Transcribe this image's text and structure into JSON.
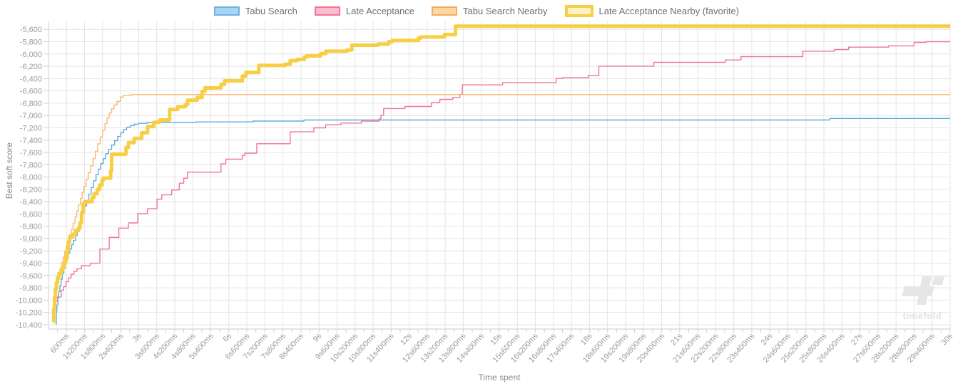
{
  "watermark": {
    "brand": "timefold"
  },
  "legend": {
    "items": [
      {
        "label": "Tabu Search",
        "fill": "#a9d5f3",
        "border": "#6cb3e3",
        "border_width": 2
      },
      {
        "label": "Late Acceptance",
        "fill": "#fbbccd",
        "border": "#f0749c",
        "border_width": 2
      },
      {
        "label": "Tabu Search Nearby",
        "fill": "#fcd8a6",
        "border": "#f7ab5e",
        "border_width": 2
      },
      {
        "label": "Late Acceptance Nearby (favorite)",
        "fill": "#fdf2c6",
        "border": "#f7cf45",
        "border_width": 4
      }
    ]
  },
  "chart_data": {
    "type": "line",
    "title": "",
    "xlabel": "Time spent",
    "ylabel": "Best soft score",
    "step": "after",
    "grid": true,
    "legend_position": "top-center",
    "xlim_seconds": [
      0,
      30
    ],
    "ylim": [
      -10470,
      -5470
    ],
    "x_label_interval_s": 0.6,
    "x_minor_tick_interval_s": 0.3,
    "x_tick_labels": [
      "600ms",
      "1s200ms",
      "1s800ms",
      "2s400ms",
      "3s",
      "3s600ms",
      "4s200ms",
      "4s800ms",
      "5s400ms",
      "6s",
      "6s600ms",
      "7s200ms",
      "7s800ms",
      "8s400ms",
      "9s",
      "9s600ms",
      "10s200ms",
      "10s800ms",
      "11s400ms",
      "12s",
      "12s600ms",
      "13s200ms",
      "13s800ms",
      "14s400ms",
      "15s",
      "15s600ms",
      "16s200ms",
      "16s800ms",
      "17s400ms",
      "18s",
      "18s600ms",
      "19s200ms",
      "19s800ms",
      "20s400ms",
      "21s",
      "21s600ms",
      "22s200ms",
      "22s800ms",
      "23s400ms",
      "24s",
      "24s600ms",
      "25s200ms",
      "25s800ms",
      "26s400ms",
      "27s",
      "27s600ms",
      "28s200ms",
      "28s800ms",
      "29s400ms",
      "30s"
    ],
    "y_ticks": [
      {
        "value": -5600,
        "label": "-5,600"
      },
      {
        "value": -5800,
        "label": "-5,800"
      },
      {
        "value": -6000,
        "label": "-6,000"
      },
      {
        "value": -6200,
        "label": "-6,200"
      },
      {
        "value": -6400,
        "label": "-6,400"
      },
      {
        "value": -6600,
        "label": "-6,600"
      },
      {
        "value": -6800,
        "label": "-6,800"
      },
      {
        "value": -7000,
        "label": "-7,000"
      },
      {
        "value": -7200,
        "label": "-7,200"
      },
      {
        "value": -7400,
        "label": "-7,400"
      },
      {
        "value": -7600,
        "label": "-7,600"
      },
      {
        "value": -7800,
        "label": "-7,800"
      },
      {
        "value": -8000,
        "label": "-8,000"
      },
      {
        "value": -8200,
        "label": "-8,200"
      },
      {
        "value": -8400,
        "label": "-8,400"
      },
      {
        "value": -8600,
        "label": "-8,600"
      },
      {
        "value": -8800,
        "label": "-8,800"
      },
      {
        "value": -9000,
        "label": "-9,000"
      },
      {
        "value": -9200,
        "label": "-9,200"
      },
      {
        "value": -9400,
        "label": "-9,400"
      },
      {
        "value": -9600,
        "label": "-9,600"
      },
      {
        "value": -9800,
        "label": "-9,800"
      },
      {
        "value": -10000,
        "label": "-10,000"
      },
      {
        "value": -10200,
        "label": "-10,200"
      },
      {
        "value": -10400,
        "label": "-10,400"
      }
    ],
    "series": [
      {
        "name": "Tabu Search",
        "color": "#5fabe0",
        "width": 1.4,
        "points": [
          [
            0.24,
            -10390
          ],
          [
            0.26,
            -10180
          ],
          [
            0.28,
            -10080
          ],
          [
            0.31,
            -9960
          ],
          [
            0.34,
            -9860
          ],
          [
            0.38,
            -9760
          ],
          [
            0.42,
            -9660
          ],
          [
            0.46,
            -9570
          ],
          [
            0.51,
            -9480
          ],
          [
            0.56,
            -9400
          ],
          [
            0.61,
            -9320
          ],
          [
            0.66,
            -9240
          ],
          [
            0.71,
            -9170
          ],
          [
            0.77,
            -9100
          ],
          [
            0.83,
            -9030
          ],
          [
            0.9,
            -8950
          ],
          [
            0.96,
            -8860
          ],
          [
            1.02,
            -8760
          ],
          [
            1.08,
            -8660
          ],
          [
            1.14,
            -8560
          ],
          [
            1.2,
            -8470
          ],
          [
            1.27,
            -8380
          ],
          [
            1.34,
            -8280
          ],
          [
            1.42,
            -8170
          ],
          [
            1.5,
            -8060
          ],
          [
            1.58,
            -7960
          ],
          [
            1.66,
            -7870
          ],
          [
            1.74,
            -7780
          ],
          [
            1.82,
            -7700
          ],
          [
            1.9,
            -7620
          ],
          [
            2.0,
            -7550
          ],
          [
            2.1,
            -7480
          ],
          [
            2.2,
            -7410
          ],
          [
            2.3,
            -7340
          ],
          [
            2.4,
            -7280
          ],
          [
            2.5,
            -7230
          ],
          [
            2.6,
            -7195
          ],
          [
            2.72,
            -7165
          ],
          [
            2.85,
            -7140
          ],
          [
            3.0,
            -7125
          ],
          [
            3.3,
            -7112
          ],
          [
            4.9,
            -7104
          ],
          [
            6.8,
            -7090
          ],
          [
            8.5,
            -7073
          ],
          [
            26.0,
            -7048
          ]
        ]
      },
      {
        "name": "Late Acceptance",
        "color": "#f0749c",
        "width": 1.4,
        "points": [
          [
            0.17,
            -10330
          ],
          [
            0.19,
            -10140
          ],
          [
            0.22,
            -10020
          ],
          [
            0.3,
            -9950
          ],
          [
            0.42,
            -9840
          ],
          [
            0.5,
            -9780
          ],
          [
            0.58,
            -9700
          ],
          [
            0.66,
            -9640
          ],
          [
            0.75,
            -9580
          ],
          [
            0.85,
            -9530
          ],
          [
            0.95,
            -9490
          ],
          [
            1.1,
            -9440
          ],
          [
            1.39,
            -9400
          ],
          [
            1.71,
            -9170
          ],
          [
            2.02,
            -8980
          ],
          [
            2.34,
            -8830
          ],
          [
            2.66,
            -8745
          ],
          [
            2.97,
            -8595
          ],
          [
            3.29,
            -8515
          ],
          [
            3.61,
            -8360
          ],
          [
            3.77,
            -8290
          ],
          [
            4.1,
            -8210
          ],
          [
            4.35,
            -8100
          ],
          [
            4.5,
            -8020
          ],
          [
            4.62,
            -7920
          ],
          [
            5.74,
            -7786
          ],
          [
            5.9,
            -7710
          ],
          [
            6.45,
            -7650
          ],
          [
            6.53,
            -7612
          ],
          [
            6.93,
            -7458
          ],
          [
            8.04,
            -7265
          ],
          [
            8.83,
            -7200
          ],
          [
            9.22,
            -7150
          ],
          [
            9.73,
            -7123
          ],
          [
            10.41,
            -7092
          ],
          [
            11.0,
            -7053
          ],
          [
            11.06,
            -6996
          ],
          [
            11.15,
            -6887
          ],
          [
            11.86,
            -6853
          ],
          [
            12.74,
            -6791
          ],
          [
            13.02,
            -6737
          ],
          [
            13.45,
            -6707
          ],
          [
            13.69,
            -6656
          ],
          [
            13.77,
            -6502
          ],
          [
            15.11,
            -6467
          ],
          [
            16.89,
            -6398
          ],
          [
            17.1,
            -6386
          ],
          [
            17.96,
            -6352
          ],
          [
            18.31,
            -6198
          ],
          [
            20.14,
            -6136
          ],
          [
            22.52,
            -6097
          ],
          [
            23.04,
            -6043
          ],
          [
            25.1,
            -5955
          ],
          [
            26.15,
            -5927
          ],
          [
            26.62,
            -5889
          ],
          [
            27.95,
            -5868
          ],
          [
            28.8,
            -5812
          ],
          [
            29.2,
            -5800
          ]
        ]
      },
      {
        "name": "Tabu Search Nearby",
        "color": "#f9b871",
        "width": 1.4,
        "points": [
          [
            0.14,
            -10280
          ],
          [
            0.16,
            -10120
          ],
          [
            0.18,
            -10000
          ],
          [
            0.21,
            -9890
          ],
          [
            0.24,
            -9790
          ],
          [
            0.27,
            -9700
          ],
          [
            0.31,
            -9620
          ],
          [
            0.35,
            -9550
          ],
          [
            0.39,
            -9480
          ],
          [
            0.44,
            -9390
          ],
          [
            0.49,
            -9300
          ],
          [
            0.54,
            -9210
          ],
          [
            0.59,
            -9120
          ],
          [
            0.64,
            -9030
          ],
          [
            0.7,
            -8940
          ],
          [
            0.76,
            -8850
          ],
          [
            0.82,
            -8750
          ],
          [
            0.88,
            -8650
          ],
          [
            0.94,
            -8550
          ],
          [
            1.0,
            -8450
          ],
          [
            1.06,
            -8350
          ],
          [
            1.12,
            -8250
          ],
          [
            1.18,
            -8150
          ],
          [
            1.25,
            -8040
          ],
          [
            1.32,
            -7930
          ],
          [
            1.4,
            -7820
          ],
          [
            1.48,
            -7700
          ],
          [
            1.56,
            -7580
          ],
          [
            1.64,
            -7460
          ],
          [
            1.72,
            -7350
          ],
          [
            1.8,
            -7240
          ],
          [
            1.88,
            -7130
          ],
          [
            1.95,
            -7040
          ],
          [
            2.02,
            -6960
          ],
          [
            2.1,
            -6890
          ],
          [
            2.18,
            -6830
          ],
          [
            2.28,
            -6770
          ],
          [
            2.39,
            -6700
          ],
          [
            2.49,
            -6672
          ],
          [
            2.75,
            -6660
          ]
        ]
      },
      {
        "name": "Late Acceptance Nearby (favorite)",
        "color": "#f7cf45",
        "width": 5,
        "points": [
          [
            0.15,
            -10350
          ],
          [
            0.17,
            -10150
          ],
          [
            0.2,
            -9960
          ],
          [
            0.23,
            -9820
          ],
          [
            0.26,
            -9720
          ],
          [
            0.3,
            -9640
          ],
          [
            0.35,
            -9570
          ],
          [
            0.42,
            -9510
          ],
          [
            0.48,
            -9450
          ],
          [
            0.53,
            -9380
          ],
          [
            0.58,
            -9290
          ],
          [
            0.62,
            -9180
          ],
          [
            0.66,
            -9060
          ],
          [
            0.7,
            -8980
          ],
          [
            0.8,
            -8930
          ],
          [
            0.9,
            -8870
          ],
          [
            1.0,
            -8830
          ],
          [
            1.05,
            -8740
          ],
          [
            1.1,
            -8580
          ],
          [
            1.15,
            -8440
          ],
          [
            1.2,
            -8400
          ],
          [
            1.45,
            -8330
          ],
          [
            1.52,
            -8270
          ],
          [
            1.62,
            -8200
          ],
          [
            1.7,
            -8130
          ],
          [
            1.78,
            -8060
          ],
          [
            1.82,
            -8017
          ],
          [
            2.07,
            -7900
          ],
          [
            2.1,
            -7630
          ],
          [
            2.58,
            -7520
          ],
          [
            2.66,
            -7440
          ],
          [
            2.85,
            -7370
          ],
          [
            3.1,
            -7280
          ],
          [
            3.3,
            -7180
          ],
          [
            3.5,
            -7110
          ],
          [
            3.7,
            -7073
          ],
          [
            4.03,
            -6900
          ],
          [
            4.3,
            -6855
          ],
          [
            4.56,
            -6820
          ],
          [
            4.63,
            -6750
          ],
          [
            4.95,
            -6706
          ],
          [
            5.11,
            -6610
          ],
          [
            5.2,
            -6552
          ],
          [
            5.74,
            -6494
          ],
          [
            5.86,
            -6436
          ],
          [
            6.45,
            -6359
          ],
          [
            6.57,
            -6301
          ],
          [
            7.0,
            -6186
          ],
          [
            7.88,
            -6166
          ],
          [
            8.04,
            -6109
          ],
          [
            8.27,
            -6089
          ],
          [
            8.51,
            -6050
          ],
          [
            8.59,
            -6031
          ],
          [
            9.06,
            -5993
          ],
          [
            9.22,
            -5955
          ],
          [
            9.93,
            -5935
          ],
          [
            10.09,
            -5858
          ],
          [
            10.96,
            -5839
          ],
          [
            11.32,
            -5800
          ],
          [
            11.44,
            -5781
          ],
          [
            12.31,
            -5742
          ],
          [
            12.39,
            -5723
          ],
          [
            13.18,
            -5684
          ],
          [
            13.54,
            -5549
          ]
        ]
      }
    ]
  }
}
